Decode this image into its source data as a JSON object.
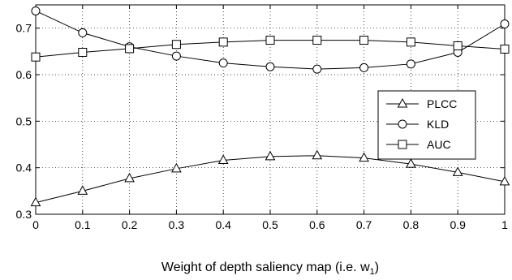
{
  "chart_data": {
    "type": "line",
    "title": "",
    "xlabel": "Weight of depth saliency map (i.e. w",
    "xlabel_subscript": "1",
    "xlabel_suffix": ")",
    "ylabel": "",
    "x": [
      0,
      0.1,
      0.2,
      0.3,
      0.4,
      0.5,
      0.6,
      0.7,
      0.8,
      0.9,
      1
    ],
    "xticks": [
      "0",
      "0.1",
      "0.2",
      "0.3",
      "0.4",
      "0.5",
      "0.6",
      "0.7",
      "0.8",
      "0.9",
      "1"
    ],
    "yticks": [
      "0.3",
      "0.4",
      "0.5",
      "0.6",
      "0.7"
    ],
    "ytick_values": [
      0.3,
      0.4,
      0.5,
      0.6,
      0.7
    ],
    "xlim": [
      0,
      1
    ],
    "ylim": [
      0.3,
      0.75
    ],
    "grid": true,
    "legend_position": "right",
    "series": [
      {
        "name": "PLCC",
        "marker": "triangle",
        "values": [
          0.325,
          0.35,
          0.377,
          0.398,
          0.416,
          0.424,
          0.426,
          0.421,
          0.408,
          0.39,
          0.37
        ]
      },
      {
        "name": "KLD",
        "marker": "circle",
        "values": [
          0.737,
          0.69,
          0.66,
          0.64,
          0.625,
          0.617,
          0.612,
          0.615,
          0.623,
          0.648,
          0.709
        ]
      },
      {
        "name": "AUC",
        "marker": "square",
        "values": [
          0.638,
          0.648,
          0.656,
          0.665,
          0.67,
          0.674,
          0.674,
          0.674,
          0.67,
          0.662,
          0.655
        ]
      }
    ]
  }
}
